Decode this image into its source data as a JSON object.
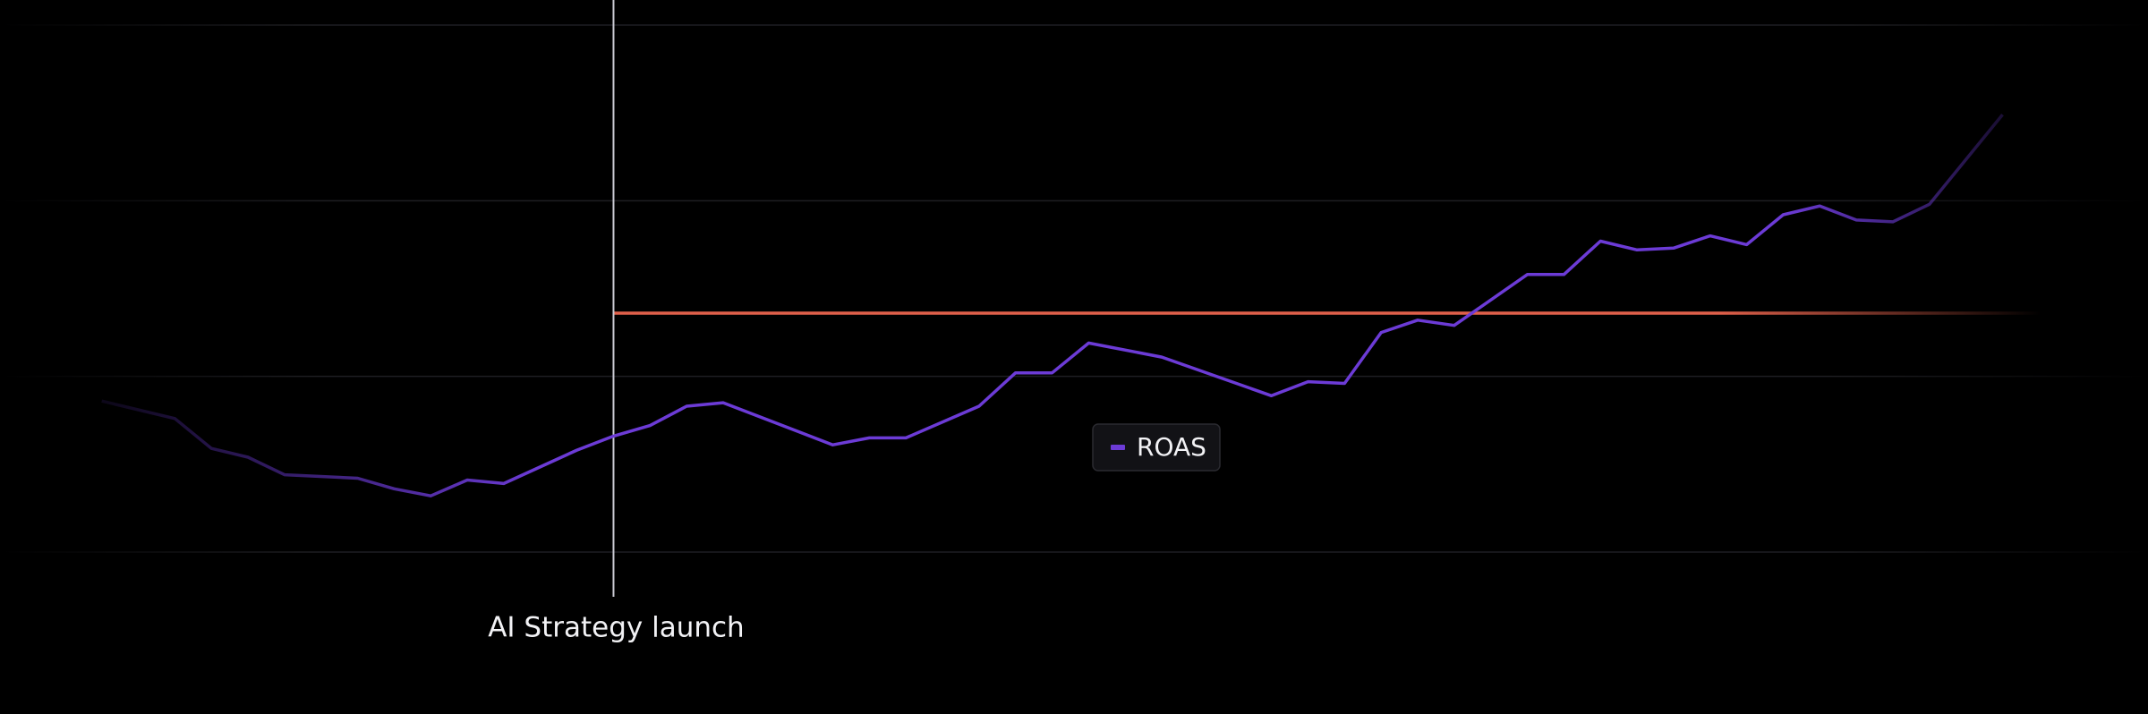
{
  "chart_data": {
    "type": "line",
    "x": [
      0,
      2,
      3,
      4,
      5,
      7,
      8,
      9,
      10,
      11,
      13,
      14,
      15,
      16,
      17,
      19,
      20,
      21,
      22,
      24,
      25,
      26,
      27,
      29,
      32,
      33,
      34,
      35,
      36,
      37,
      39,
      40,
      41,
      42,
      43,
      44,
      45,
      46,
      47,
      48,
      49,
      50,
      52
    ],
    "series": [
      {
        "name": "ROAS",
        "color": "#6c3bd6",
        "values": [
          0.86,
          0.76,
          0.59,
          0.54,
          0.44,
          0.42,
          0.36,
          0.32,
          0.41,
          0.39,
          0.58,
          0.66,
          0.72,
          0.83,
          0.85,
          0.69,
          0.61,
          0.65,
          0.65,
          0.83,
          1.02,
          1.02,
          1.19,
          1.11,
          0.89,
          0.97,
          0.96,
          1.25,
          1.32,
          1.29,
          1.58,
          1.58,
          1.77,
          1.72,
          1.73,
          1.8,
          1.75,
          1.92,
          1.97,
          1.89,
          1.88,
          1.98,
          2.49
        ]
      }
    ],
    "xlim": [
      -2,
      55
    ],
    "ylim": [
      0,
      3
    ],
    "yticks": [
      0,
      1,
      2,
      3
    ],
    "tick_labels": false,
    "grid": true,
    "reference_line": {
      "value": 1.36,
      "from_x": 14,
      "color": "#e0604a"
    },
    "annotation": {
      "x": 14,
      "label": "AI Strategy launch"
    },
    "legend": "center"
  }
}
